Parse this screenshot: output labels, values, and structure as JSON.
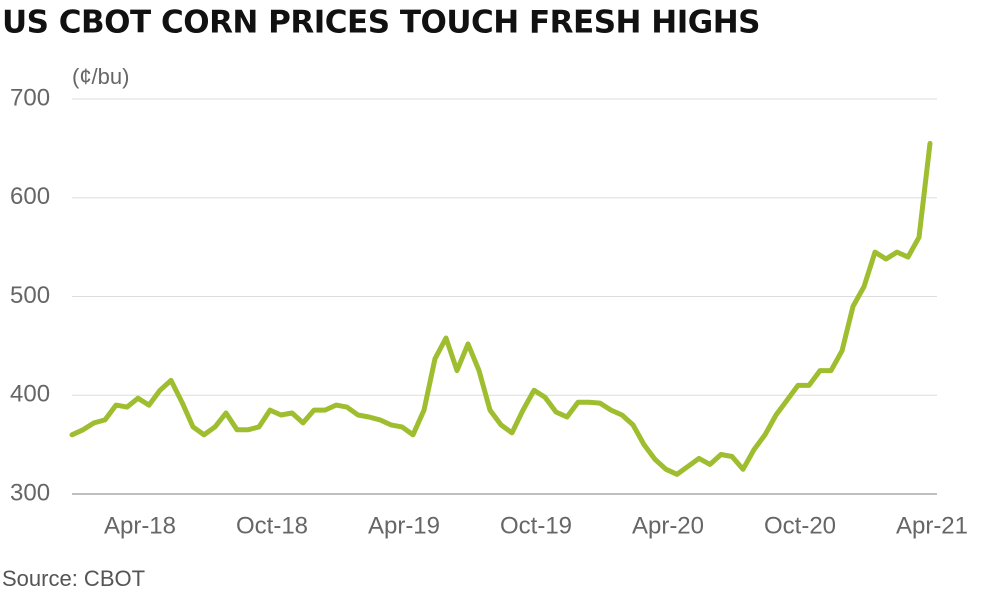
{
  "chart_data": {
    "type": "line",
    "title": "US CBOT CORN PRICES TOUCH FRESH HIGHS",
    "y_label": "(¢/bu)",
    "source": "Source: CBOT",
    "categories": [
      null,
      null,
      null,
      null,
      null,
      null,
      "Apr-18",
      null,
      null,
      null,
      null,
      null,
      null,
      null,
      null,
      null,
      null,
      null,
      "Oct-18",
      null,
      null,
      null,
      null,
      null,
      null,
      null,
      null,
      null,
      null,
      null,
      "Apr-19",
      null,
      null,
      null,
      null,
      null,
      null,
      null,
      null,
      null,
      null,
      null,
      "Oct-19",
      null,
      null,
      null,
      null,
      null,
      null,
      null,
      null,
      null,
      null,
      null,
      "Apr-20",
      null,
      null,
      null,
      null,
      null,
      null,
      null,
      null,
      null,
      null,
      null,
      "Oct-20",
      null,
      null,
      null,
      null,
      null,
      null,
      null,
      null,
      null,
      null,
      null,
      "Apr-21"
    ],
    "series": [
      {
        "name": "Corn",
        "color": "#9ebd2f",
        "values": [
          360,
          365,
          372,
          375,
          390,
          388,
          397,
          390,
          405,
          415,
          393,
          368,
          360,
          368,
          382,
          365,
          365,
          368,
          385,
          380,
          382,
          372,
          385,
          385,
          390,
          388,
          380,
          378,
          375,
          370,
          368,
          360,
          385,
          437,
          458,
          425,
          452,
          425,
          385,
          370,
          362,
          385,
          405,
          398,
          383,
          378,
          393,
          393,
          392,
          385,
          380,
          370,
          350,
          335,
          325,
          320,
          328,
          336,
          330,
          340,
          338,
          325,
          345,
          360,
          380,
          395,
          410,
          410,
          425,
          425,
          445,
          490,
          510,
          545,
          538,
          545,
          540,
          560,
          655
        ]
      }
    ],
    "ylim": [
      300,
      700
    ],
    "yticks": [
      300,
      400,
      500,
      600,
      700
    ],
    "grid": true
  }
}
